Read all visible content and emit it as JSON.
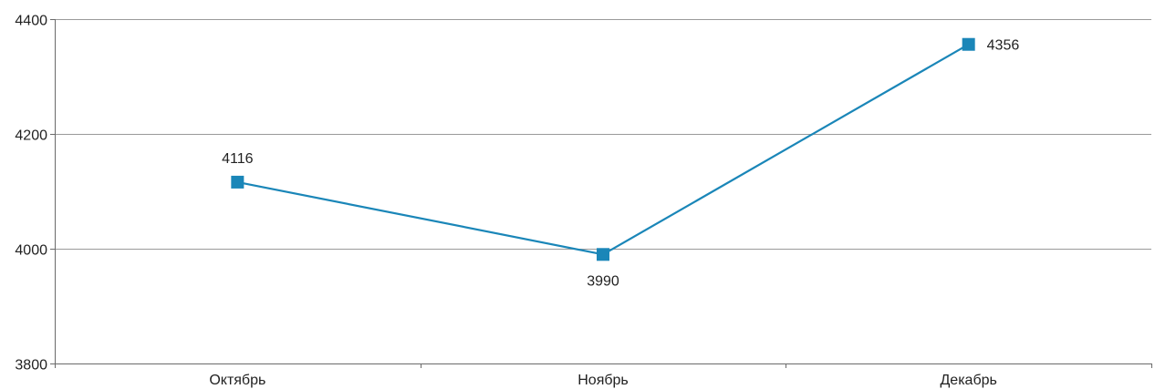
{
  "chart_data": {
    "type": "line",
    "categories": [
      "Октябрь",
      "Ноябрь",
      "Декабрь"
    ],
    "series": [
      {
        "values": [
          4116,
          3990,
          4356
        ],
        "color": "#1a86b8",
        "marker": "square",
        "data_labels": [
          "4116",
          "3990",
          "4356"
        ],
        "label_positions": [
          "above",
          "below",
          "right"
        ]
      }
    ],
    "ylim": [
      3800,
      4400
    ],
    "yticks": [
      3800,
      4000,
      4200,
      4400
    ],
    "ytick_labels": [
      "3800",
      "4000",
      "4200",
      "4400"
    ],
    "grid": true,
    "legend": "none"
  },
  "colors": {
    "series": "#1a86b8",
    "grid": "#9a9a9a",
    "axis": "#6a6a6a",
    "text": "#222222"
  }
}
